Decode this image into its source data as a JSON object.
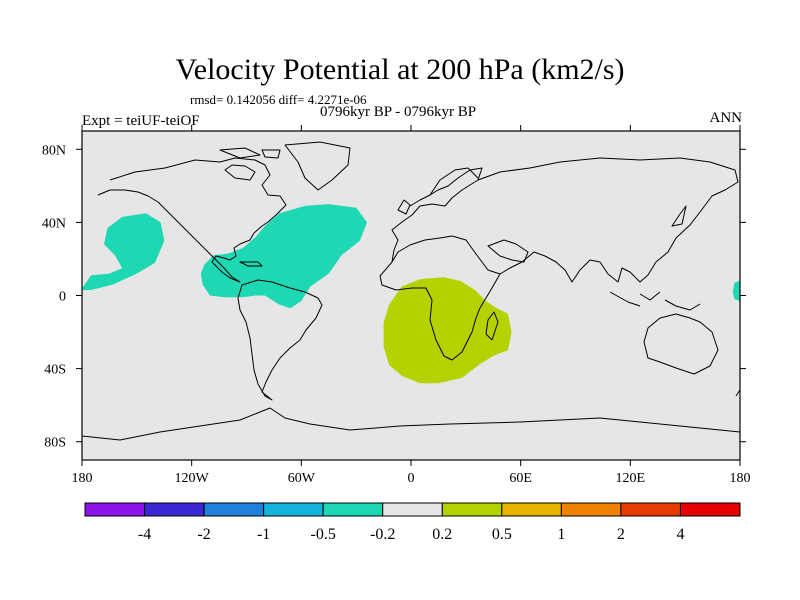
{
  "title": "Velocity Potential at 200 hPa (km2/s)",
  "stats_line": "rmsd= 0.142056 diff= 4.2271e-06",
  "expt_label": "Expt = teiUF-teiOF",
  "period_label": "0796kyr BP - 0796kyr BP",
  "season_label": "ANN",
  "map": {
    "lon_range": [
      -180,
      180
    ],
    "lat_range": [
      -90,
      90
    ],
    "background_color": "#e6e6e6",
    "lat_ticks": [
      {
        "value": 80,
        "label": "80N"
      },
      {
        "value": 40,
        "label": "40N"
      },
      {
        "value": 0,
        "label": "0"
      },
      {
        "value": -40,
        "label": "40S"
      },
      {
        "value": -80,
        "label": "80S"
      }
    ],
    "lon_ticks": [
      {
        "value": -180,
        "label": "180"
      },
      {
        "value": -120,
        "label": "120W"
      },
      {
        "value": -60,
        "label": "60W"
      },
      {
        "value": 0,
        "label": "0"
      },
      {
        "value": 60,
        "label": "60E"
      },
      {
        "value": 120,
        "label": "120E"
      },
      {
        "value": 180,
        "label": "180"
      }
    ],
    "anomaly_regions": [
      {
        "name": "north-pacific-negative",
        "level": "-0.5 to -0.2",
        "color": "#1ed8b4",
        "polygon": [
          [
            -180,
            4
          ],
          [
            -175,
            11
          ],
          [
            -165,
            12
          ],
          [
            -158,
            15
          ],
          [
            -162,
            22
          ],
          [
            -168,
            28
          ],
          [
            -166,
            37
          ],
          [
            -158,
            43
          ],
          [
            -145,
            45
          ],
          [
            -137,
            40
          ],
          [
            -135,
            30
          ],
          [
            -140,
            18
          ],
          [
            -150,
            12
          ],
          [
            -163,
            6
          ],
          [
            -175,
            3
          ],
          [
            -180,
            3
          ]
        ]
      },
      {
        "name": "atlantic-americas-negative",
        "level": "-0.5 to -0.2",
        "color": "#1ed8b4",
        "polygon": [
          [
            -113,
            17
          ],
          [
            -108,
            22
          ],
          [
            -100,
            23
          ],
          [
            -92,
            26
          ],
          [
            -85,
            32
          ],
          [
            -80,
            38
          ],
          [
            -72,
            45
          ],
          [
            -58,
            49
          ],
          [
            -45,
            50
          ],
          [
            -30,
            48
          ],
          [
            -24,
            40
          ],
          [
            -28,
            30
          ],
          [
            -38,
            22
          ],
          [
            -45,
            12
          ],
          [
            -55,
            5
          ],
          [
            -60,
            -3
          ],
          [
            -66,
            -7
          ],
          [
            -72,
            -5
          ],
          [
            -80,
            0
          ],
          [
            -85,
            0
          ],
          [
            -92,
            -1
          ],
          [
            -102,
            -1
          ],
          [
            -110,
            0
          ],
          [
            -114,
            6
          ],
          [
            -115,
            12
          ]
        ]
      },
      {
        "name": "southern-africa-positive",
        "level": "0.2 to 0.5",
        "color": "#b4d200",
        "polygon": [
          [
            -5,
            5
          ],
          [
            5,
            9
          ],
          [
            18,
            10
          ],
          [
            27,
            8
          ],
          [
            35,
            3
          ],
          [
            41,
            -3
          ],
          [
            47,
            -7
          ],
          [
            53,
            -10
          ],
          [
            55,
            -20
          ],
          [
            53,
            -30
          ],
          [
            45,
            -33
          ],
          [
            37,
            -38
          ],
          [
            28,
            -45
          ],
          [
            15,
            -48
          ],
          [
            5,
            -48
          ],
          [
            -5,
            -44
          ],
          [
            -12,
            -38
          ],
          [
            -15,
            -28
          ],
          [
            -15,
            -15
          ],
          [
            -12,
            -5
          ]
        ]
      },
      {
        "name": "west-pacific-negative",
        "level": "-0.5 to -0.2",
        "color": "#1ed8b4",
        "polygon": [
          [
            180,
            8
          ],
          [
            177,
            7
          ],
          [
            176,
            2
          ],
          [
            177,
            -2
          ],
          [
            180,
            -3
          ]
        ]
      }
    ]
  },
  "colorbar": {
    "levels": [
      "-4",
      "-2",
      "-1",
      "-0.5",
      "-0.2",
      "0.2",
      "0.5",
      "1",
      "2",
      "4"
    ],
    "colors": [
      "#8c14e6",
      "#3c28d2",
      "#1e82dc",
      "#14b4dc",
      "#1ed8b4",
      "#e6e6e6",
      "#b4d200",
      "#e6b400",
      "#f08200",
      "#e63c00",
      "#e60000"
    ]
  }
}
